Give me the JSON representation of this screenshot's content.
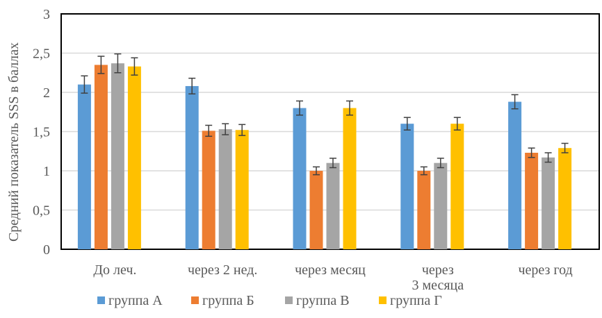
{
  "chart_data": {
    "type": "bar",
    "title": "",
    "xlabel": "",
    "ylabel": "Средний показатель SSS в баллах",
    "ylim": [
      0,
      3
    ],
    "yticks": [
      "0",
      "0,5",
      "1",
      "1,5",
      "2",
      "2,5",
      "3"
    ],
    "ytick_values": [
      0,
      0.5,
      1,
      1.5,
      2,
      2.5,
      3
    ],
    "grid": true,
    "legend_position": "bottom",
    "categories": [
      [
        "До леч."
      ],
      [
        "через 2 нед."
      ],
      [
        "через месяц"
      ],
      [
        "через",
        "3 месяца"
      ],
      [
        "через год"
      ]
    ],
    "series": [
      {
        "name": "группа А",
        "color": "#5B9BD5",
        "values": [
          2.1,
          2.08,
          1.8,
          1.6,
          1.88
        ],
        "errors": [
          0.11,
          0.1,
          0.09,
          0.08,
          0.09
        ]
      },
      {
        "name": "группа Б",
        "color": "#ED7D31",
        "values": [
          2.35,
          1.51,
          1.0,
          1.0,
          1.23
        ],
        "errors": [
          0.11,
          0.07,
          0.05,
          0.05,
          0.06
        ]
      },
      {
        "name": "группа В",
        "color": "#A5A5A5",
        "values": [
          2.37,
          1.53,
          1.1,
          1.1,
          1.17
        ],
        "errors": [
          0.12,
          0.07,
          0.06,
          0.06,
          0.06
        ]
      },
      {
        "name": "группа Г",
        "color": "#FFC000",
        "values": [
          2.33,
          1.52,
          1.8,
          1.6,
          1.29
        ],
        "errors": [
          0.11,
          0.07,
          0.09,
          0.08,
          0.06
        ]
      }
    ]
  }
}
